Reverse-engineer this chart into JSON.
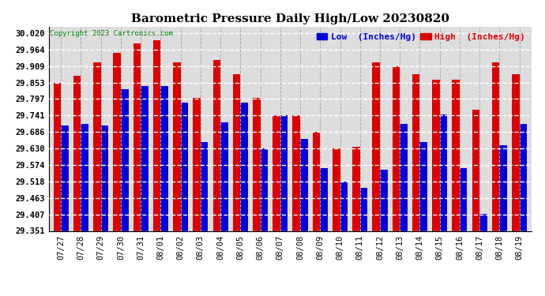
{
  "title": "Barometric Pressure Daily High/Low 20230820",
  "copyright": "Copyright 2023 Cartronics.com",
  "ylabel_low": "Low  (Inches/Hg)",
  "ylabel_high": "High  (Inches/Hg)",
  "background_color": "#ffffff",
  "plot_bg_color": "#ffffff",
  "bar_color_low": "#0000dd",
  "bar_color_high": "#dd0000",
  "grid_color": "#aaaaaa",
  "ylim_min": 29.351,
  "ylim_max": 30.042,
  "yticks": [
    29.351,
    29.407,
    29.463,
    29.518,
    29.574,
    29.63,
    29.686,
    29.741,
    29.797,
    29.853,
    29.909,
    29.964,
    30.02
  ],
  "dates": [
    "07/27",
    "07/28",
    "07/29",
    "07/30",
    "07/31",
    "08/01",
    "08/02",
    "08/03",
    "08/04",
    "08/05",
    "08/06",
    "08/07",
    "08/08",
    "08/09",
    "08/10",
    "08/11",
    "08/12",
    "08/13",
    "08/14",
    "08/15",
    "08/16",
    "08/17",
    "08/18",
    "08/19"
  ],
  "high": [
    29.853,
    29.876,
    29.921,
    29.952,
    29.985,
    29.997,
    29.921,
    29.8,
    29.93,
    29.88,
    29.8,
    29.741,
    29.741,
    29.686,
    29.63,
    29.636,
    29.921,
    29.909,
    29.88,
    29.862,
    29.862,
    29.762,
    29.921,
    29.88
  ],
  "low": [
    29.708,
    29.714,
    29.708,
    29.83,
    29.841,
    29.841,
    29.786,
    29.652,
    29.719,
    29.786,
    29.63,
    29.741,
    29.663,
    29.563,
    29.519,
    29.497,
    29.557,
    29.714,
    29.652,
    29.746,
    29.563,
    29.408,
    29.641,
    29.714
  ]
}
